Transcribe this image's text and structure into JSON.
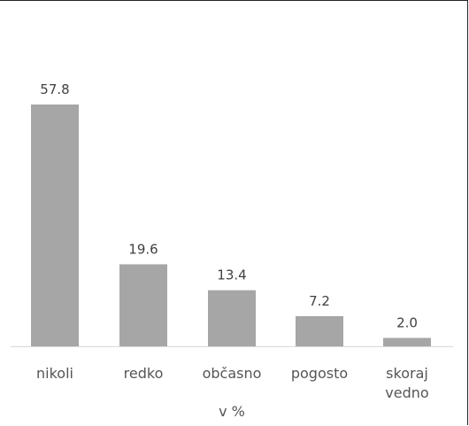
{
  "chart_data": {
    "type": "bar",
    "title": "",
    "xlabel": "v %",
    "ylabel": "",
    "categories": [
      [
        "nikoli"
      ],
      [
        "redko"
      ],
      [
        "občasno"
      ],
      [
        "pogosto"
      ],
      [
        "skoraj",
        "vedno"
      ]
    ],
    "values": [
      57.8,
      19.6,
      13.4,
      7.2,
      2.0
    ],
    "value_labels": [
      "57.8",
      "19.6",
      "13.4",
      "7.2",
      "2.0"
    ],
    "ylim": [
      0,
      60
    ],
    "grid": false,
    "legend": "none",
    "colors": {
      "bar": "#a6a6a6",
      "axis": "#d9d9d9",
      "text": "#404040"
    }
  }
}
